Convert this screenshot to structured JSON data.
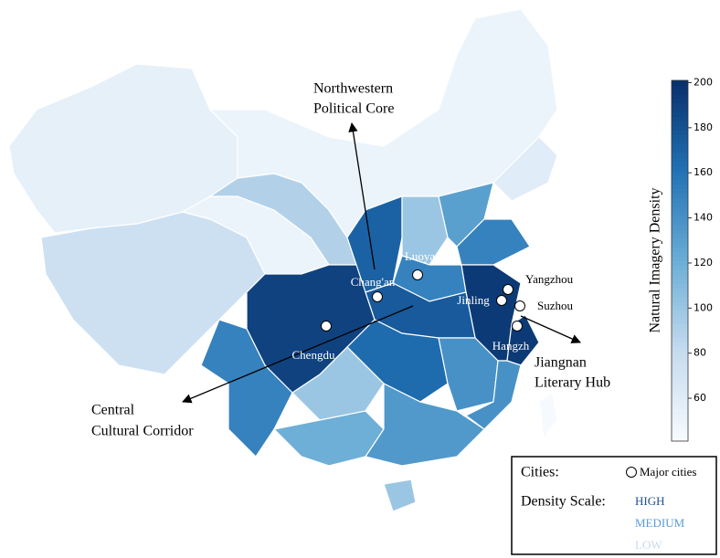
{
  "chart_data": {
    "type": "choropleth",
    "region_density": [
      55,
      75,
      50,
      90,
      50,
      170,
      100,
      130,
      150,
      150,
      195,
      190,
      175,
      165,
      140,
      195,
      140,
      150,
      100,
      120,
      135,
      100,
      42,
      60
    ],
    "cities": [
      {
        "name": "Chengdu"
      },
      {
        "name": "Chang'an"
      },
      {
        "name": "Luoyang"
      },
      {
        "name": "Jinling"
      },
      {
        "name": "Yangzhou"
      },
      {
        "name": "Suzhou"
      },
      {
        "name": "Hangzh"
      }
    ],
    "annotations": [
      {
        "lines": [
          "Northwestern",
          "Political Core"
        ]
      },
      {
        "lines": [
          "Central",
          "Cultural  Corridor"
        ]
      },
      {
        "lines": [
          "Jiangnan",
          "Literary Hub"
        ]
      }
    ],
    "colorbar": {
      "label": "Natural Imagery Density",
      "lim": [
        41,
        201
      ],
      "ticks": [
        60,
        80,
        100,
        120,
        140,
        160,
        180,
        200
      ]
    },
    "legend": {
      "cities_title": "Cities:",
      "cities_item": "Major cities",
      "scale_title": "Density Scale:",
      "levels": [
        "HIGH",
        "MEDIUM",
        "LOW"
      ]
    }
  }
}
